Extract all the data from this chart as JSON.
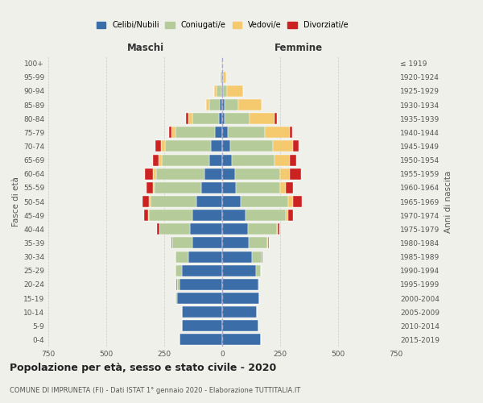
{
  "age_groups": [
    "0-4",
    "5-9",
    "10-14",
    "15-19",
    "20-24",
    "25-29",
    "30-34",
    "35-39",
    "40-44",
    "45-49",
    "50-54",
    "55-59",
    "60-64",
    "65-69",
    "70-74",
    "75-79",
    "80-84",
    "85-89",
    "90-94",
    "95-99",
    "100+"
  ],
  "birth_years": [
    "2015-2019",
    "2010-2014",
    "2005-2009",
    "2000-2004",
    "1995-1999",
    "1990-1994",
    "1985-1989",
    "1980-1984",
    "1975-1979",
    "1970-1974",
    "1965-1969",
    "1960-1964",
    "1955-1959",
    "1950-1954",
    "1945-1949",
    "1940-1944",
    "1935-1939",
    "1930-1934",
    "1925-1929",
    "1920-1924",
    "≤ 1919"
  ],
  "maschi": {
    "celibe": [
      185,
      175,
      175,
      195,
      185,
      175,
      145,
      130,
      140,
      130,
      110,
      90,
      75,
      55,
      50,
      30,
      15,
      10,
      5,
      3,
      2
    ],
    "coniugato": [
      0,
      0,
      0,
      5,
      10,
      25,
      55,
      85,
      130,
      185,
      200,
      200,
      210,
      205,
      195,
      170,
      115,
      45,
      20,
      5,
      1
    ],
    "vedovo": [
      0,
      0,
      0,
      0,
      0,
      0,
      0,
      0,
      2,
      3,
      5,
      8,
      12,
      15,
      20,
      18,
      15,
      15,
      10,
      2,
      0
    ],
    "divorziato": [
      0,
      0,
      0,
      0,
      2,
      0,
      3,
      5,
      8,
      18,
      30,
      30,
      35,
      25,
      22,
      12,
      10,
      0,
      0,
      0,
      0
    ]
  },
  "femmine": {
    "nubile": [
      165,
      155,
      150,
      160,
      155,
      145,
      130,
      115,
      110,
      100,
      80,
      60,
      55,
      40,
      35,
      25,
      12,
      10,
      5,
      2,
      1
    ],
    "coniugata": [
      0,
      0,
      0,
      0,
      5,
      20,
      40,
      80,
      125,
      175,
      205,
      190,
      195,
      185,
      185,
      160,
      105,
      60,
      15,
      2,
      0
    ],
    "vedova": [
      0,
      0,
      0,
      0,
      0,
      0,
      0,
      3,
      5,
      10,
      20,
      25,
      40,
      65,
      85,
      105,
      110,
      100,
      70,
      15,
      2
    ],
    "divorziata": [
      0,
      0,
      0,
      0,
      0,
      0,
      5,
      5,
      8,
      22,
      40,
      30,
      50,
      30,
      25,
      12,
      8,
      0,
      0,
      0,
      0
    ]
  },
  "colors": {
    "celibe": "#3b6ea8",
    "coniugato": "#b5cc9a",
    "vedovo": "#f5c96e",
    "divorziato": "#cc2222"
  },
  "title": "Popolazione per età, sesso e stato civile - 2020",
  "subtitle": "COMUNE DI IMPRUNETA (FI) - Dati ISTAT 1° gennaio 2020 - Elaborazione TUTTITALIA.IT",
  "xlabel_left": "Maschi",
  "xlabel_right": "Femmine",
  "ylabel_left": "Fasce di età",
  "ylabel_right": "Anni di nascita",
  "xlim": 750,
  "background_color": "#f0f0eb",
  "legend_labels": [
    "Celibi/Nubili",
    "Coniugati/e",
    "Vedovi/e",
    "Divorziati/e"
  ]
}
